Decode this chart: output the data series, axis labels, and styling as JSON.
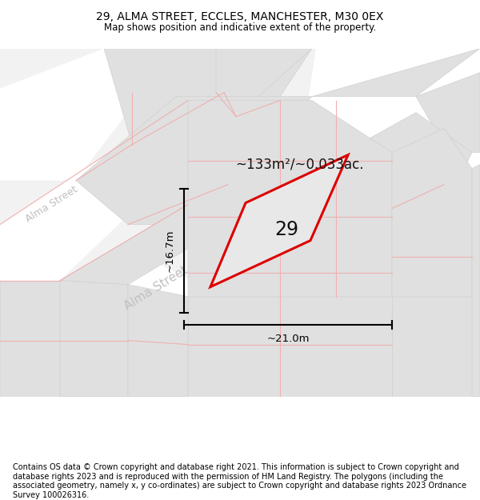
{
  "title_line1": "29, ALMA STREET, ECCLES, MANCHESTER, M30 0EX",
  "title_line2": "Map shows position and indicative extent of the property.",
  "footer": "Contains OS data © Crown copyright and database right 2021. This information is subject to Crown copyright and database rights 2023 and is reproduced with the permission of HM Land Registry. The polygons (including the associated geometry, namely x, y co-ordinates) are subject to Crown copyright and database rights 2023 Ordnance Survey 100026316.",
  "area_label": "~133m²/~0.033ac.",
  "dim_width": "~21.0m",
  "dim_height": "~16.7m",
  "number_label": "29",
  "bg_color": "#ffffff",
  "map_bg": "#f2f2f2",
  "block_color": "#e0e0e0",
  "block_edge": "#cccccc",
  "plot_outline_color": "#dd0000",
  "plot_fill_color": "#e8e8e8",
  "parcel_line_color": "#f0b0b0",
  "road_color": "#ffffff",
  "street_color": "#c0c0c0",
  "title_fontsize": 10,
  "subtitle_fontsize": 8.5,
  "footer_fontsize": 7.0,
  "street_label_upper": "Alma Street",
  "street_label_lower": "Alma Street"
}
